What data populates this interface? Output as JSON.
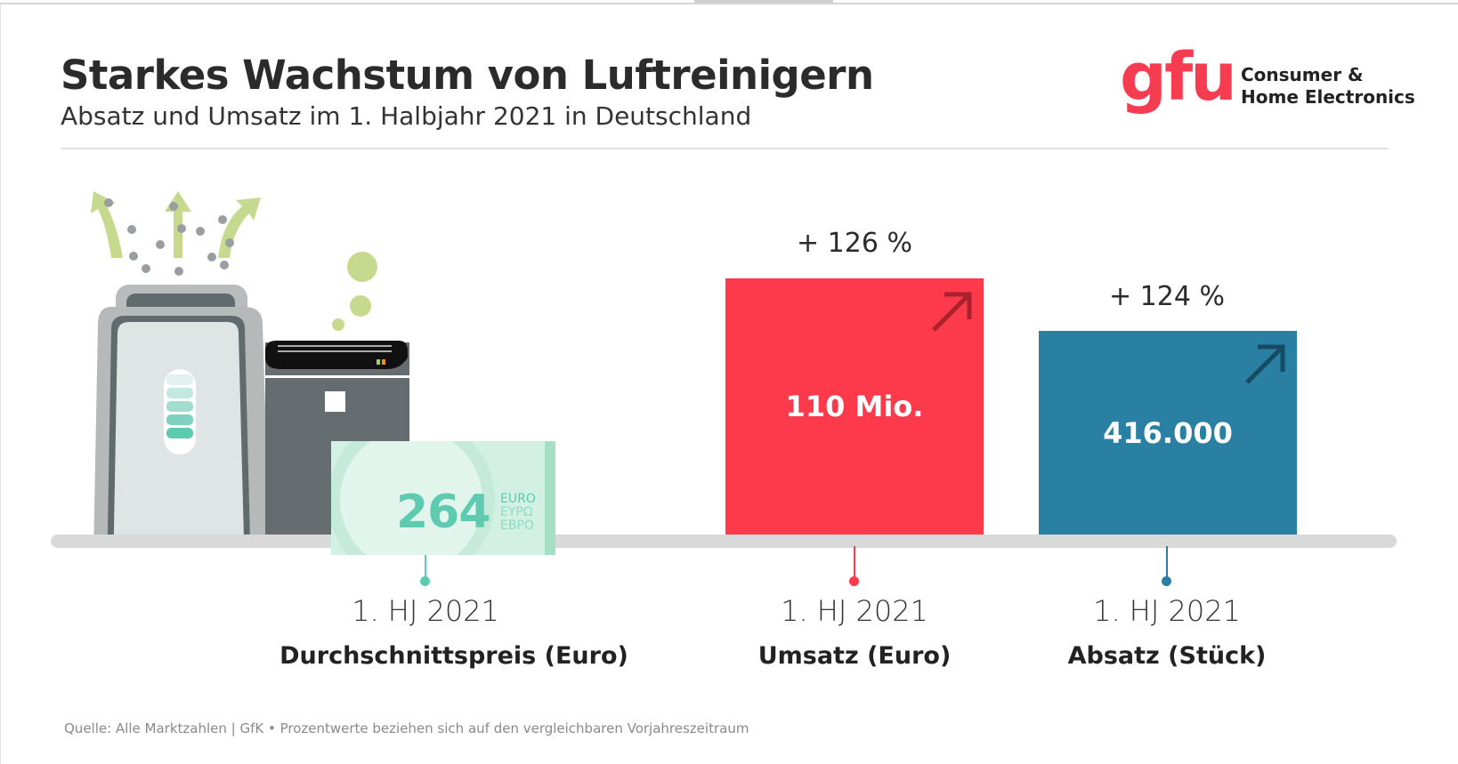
{
  "header": {
    "title": "Starkes Wachstum von Luftreinigern",
    "subtitle": "Absatz und Umsatz im 1. Halbjahr 2021 in Deutschland"
  },
  "logo": {
    "brand": "gfu",
    "line1": "Consumer &",
    "line2": "Home Electronics"
  },
  "colors": {
    "red": "#fc3a4b",
    "blue": "#2a80a3",
    "teal": "#5ecbb0",
    "baseline": "#d9d9d9"
  },
  "banknote": {
    "value": "264",
    "currency_lines": [
      "EURO",
      "ΕΥΡΩ",
      "ЕВРО"
    ]
  },
  "chart_data": {
    "type": "bar",
    "title": "Starkes Wachstum von Luftreinigern",
    "categories": [
      "Durchschnittspreis (Euro)",
      "Umsatz (Euro)",
      "Absatz (Stück)"
    ],
    "period": "1. HJ 2021",
    "series": [
      {
        "name": "Durchschnittspreis (Euro)",
        "value": 264,
        "display": "264",
        "growth": null
      },
      {
        "name": "Umsatz (Euro)",
        "value": 110000000,
        "display": "110 Mio.",
        "growth": "+ 126 %"
      },
      {
        "name": "Absatz (Stück)",
        "value": 416000,
        "display": "416.000",
        "growth": "+ 124 %"
      }
    ]
  },
  "footer": "Quelle: Alle Marktzahlen | GfK • Prozentwerte beziehen sich auf den vergleichbaren Vorjahreszeitraum"
}
